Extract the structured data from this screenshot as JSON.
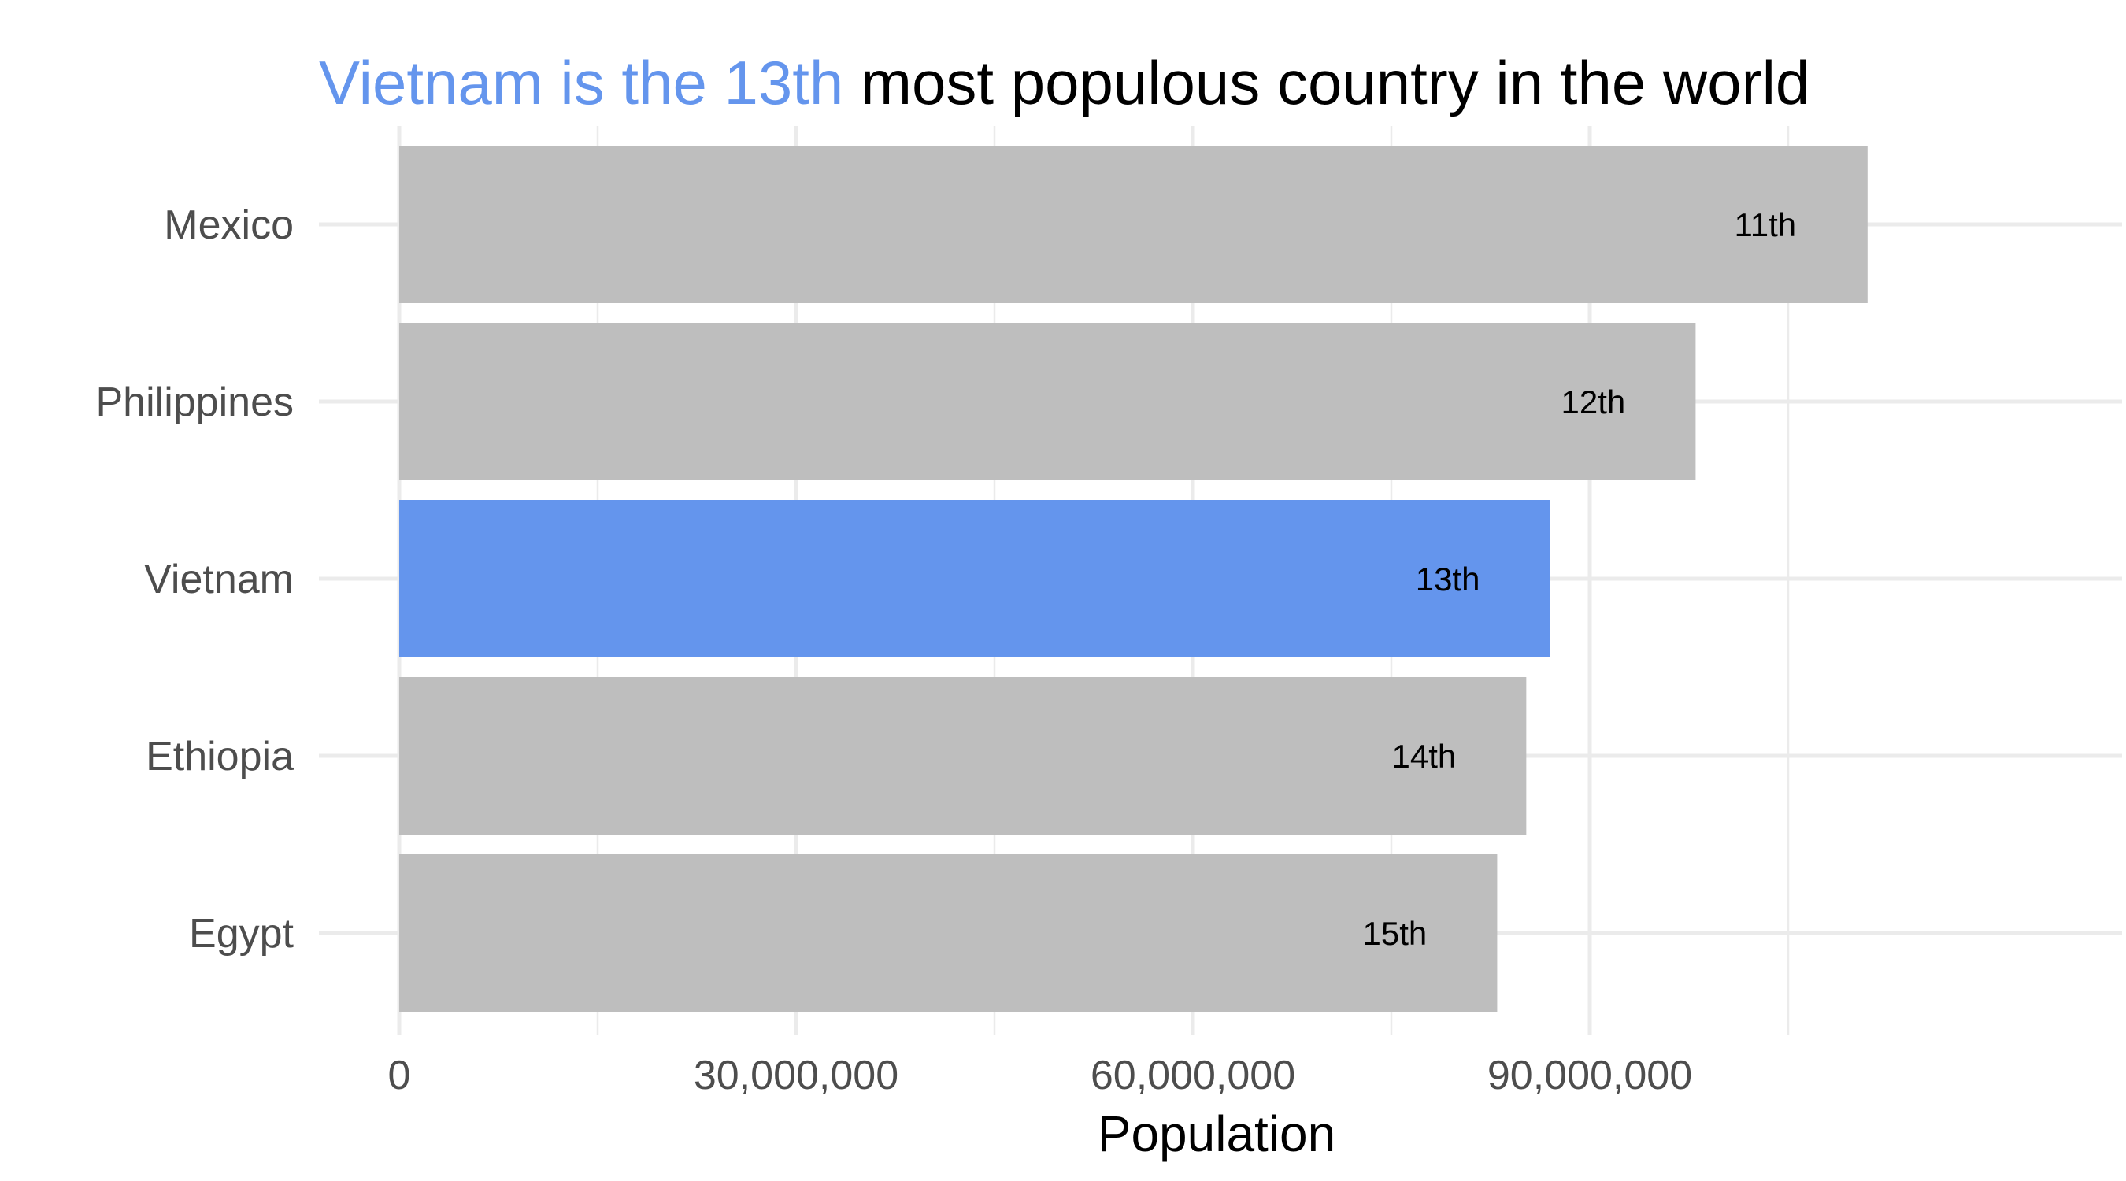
{
  "chart_data": {
    "type": "bar",
    "orientation": "horizontal",
    "title_highlight": "Vietnam is the 13th",
    "title_rest": " most populous country in the world",
    "xlabel": "Population",
    "ylabel": "",
    "categories": [
      "Mexico",
      "Philippines",
      "Vietnam",
      "Ethiopia",
      "Egypt"
    ],
    "values": [
      111000000,
      98000000,
      87000000,
      85200000,
      83000000
    ],
    "bar_labels": [
      "11th",
      "12th",
      "13th",
      "14th",
      "15th"
    ],
    "highlight_index": 2,
    "xlim": [
      0,
      116000000
    ],
    "xticks": [
      0,
      30000000,
      60000000,
      90000000
    ],
    "xtick_labels": [
      "0",
      "30,000,000",
      "60,000,000",
      "90,000,000"
    ],
    "minor_xticks": [
      15000000,
      45000000,
      75000000,
      105000000
    ],
    "grid": true,
    "legend": "none",
    "colors": {
      "highlight": "#6495ED",
      "default": "#BEBEBE",
      "title_highlight": "#6495ED",
      "title": "#000000"
    }
  }
}
